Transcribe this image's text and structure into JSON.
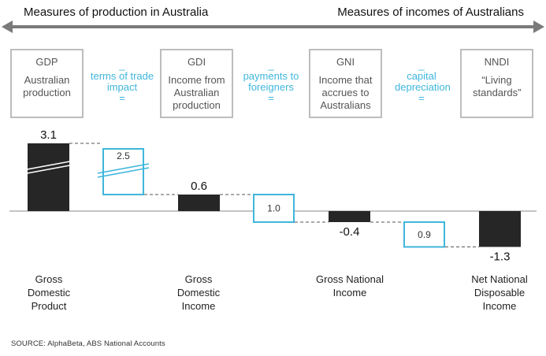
{
  "header": {
    "left": "Measures of production in Australia",
    "right": "Measures of incomes of Australians"
  },
  "boxes": [
    {
      "code": "GDP",
      "desc": "Australian production"
    },
    {
      "code": "GDI",
      "desc": "Income from Australian production"
    },
    {
      "code": "GNI",
      "desc": "Income that accrues to Australians"
    },
    {
      "code": "NNDI",
      "desc": "“Living standards”"
    }
  ],
  "operators": [
    {
      "minus": "_",
      "label": "terms of trade impact",
      "equals": "="
    },
    {
      "minus": "_",
      "label": "payments to foreigners",
      "equals": "="
    },
    {
      "minus": "_",
      "label": "capital depreciation",
      "equals": "="
    }
  ],
  "chart_data": {
    "type": "bar",
    "subtype": "waterfall",
    "categories": [
      "Gross Domestic Product",
      "",
      "Gross Domestic Income",
      "",
      "Gross National Income",
      "",
      "Net National Disposable Income"
    ],
    "values": [
      3.1,
      2.5,
      0.6,
      1.0,
      -0.4,
      0.9,
      -1.3
    ],
    "value_labels": [
      "3.1",
      "2.5",
      "0.6",
      "1.0",
      "-0.4",
      "0.9",
      "-1.3"
    ],
    "kinds": [
      "total",
      "deduction",
      "total",
      "deduction",
      "total",
      "deduction",
      "total"
    ],
    "broken_axis_bars": [
      0,
      1
    ],
    "colors": {
      "total": "#262626",
      "deduction_border": "#3fb6dc",
      "deduction_fill": "#ffffff",
      "connector": "#555555"
    }
  },
  "category_labels": [
    "Gross Domestic Product",
    "Gross Domestic Income",
    "Gross National Income",
    "Net National Disposable Income"
  ],
  "source": "SOURCE: AlphaBeta, ABS National Accounts"
}
